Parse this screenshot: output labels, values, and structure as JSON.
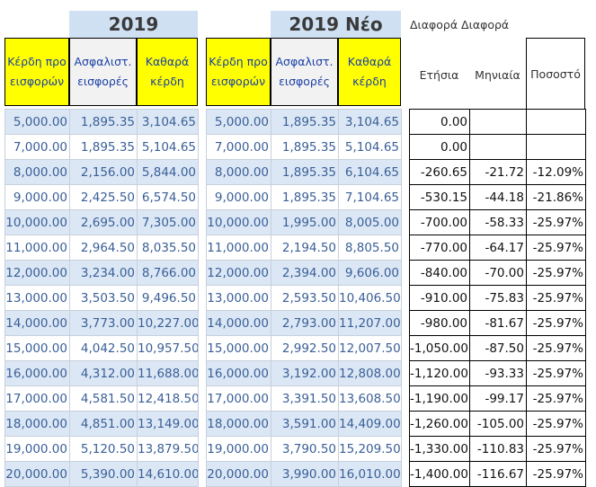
{
  "left": {
    "title": "2019",
    "headers": [
      "Κέρδη προ εισφορών",
      "Ασφαλιστ. εισφορές",
      "Καθαρά κέρδη"
    ],
    "rows": [
      [
        "5,000.00",
        "1,895.35",
        "3,104.65"
      ],
      [
        "7,000.00",
        "1,895.35",
        "5,104.65"
      ],
      [
        "8,000.00",
        "2,156.00",
        "5,844.00"
      ],
      [
        "9,000.00",
        "2,425.50",
        "6,574.50"
      ],
      [
        "10,000.00",
        "2,695.00",
        "7,305.00"
      ],
      [
        "11,000.00",
        "2,964.50",
        "8,035.50"
      ],
      [
        "12,000.00",
        "3,234.00",
        "8,766.00"
      ],
      [
        "13,000.00",
        "3,503.50",
        "9,496.50"
      ],
      [
        "14,000.00",
        "3,773.00",
        "10,227.00"
      ],
      [
        "15,000.00",
        "4,042.50",
        "10,957.50"
      ],
      [
        "16,000.00",
        "4,312.00",
        "11,688.00"
      ],
      [
        "17,000.00",
        "4,581.50",
        "12,418.50"
      ],
      [
        "18,000.00",
        "4,851.00",
        "13,149.00"
      ],
      [
        "19,000.00",
        "5,120.50",
        "13,879.50"
      ],
      [
        "20,000.00",
        "5,390.00",
        "14,610.00"
      ]
    ]
  },
  "right": {
    "title": "2019 Νέο",
    "headers": [
      "Κέρδη προ εισφορών",
      "Ασφαλιστ. εισφορές",
      "Καθαρά κέρδη"
    ],
    "rows": [
      [
        "5,000.00",
        "1,895.35",
        "3,104.65"
      ],
      [
        "7,000.00",
        "1,895.35",
        "5,104.65"
      ],
      [
        "8,000.00",
        "1,895.35",
        "6,104.65"
      ],
      [
        "9,000.00",
        "1,895.35",
        "7,104.65"
      ],
      [
        "10,000.00",
        "1,995.00",
        "8,005.00"
      ],
      [
        "11,000.00",
        "2,194.50",
        "8,805.50"
      ],
      [
        "12,000.00",
        "2,394.00",
        "9,606.00"
      ],
      [
        "13,000.00",
        "2,593.50",
        "10,406.50"
      ],
      [
        "14,000.00",
        "2,793.00",
        "11,207.00"
      ],
      [
        "15,000.00",
        "2,992.50",
        "12,007.50"
      ],
      [
        "16,000.00",
        "3,192.00",
        "12,808.00"
      ],
      [
        "17,000.00",
        "3,391.50",
        "13,608.50"
      ],
      [
        "18,000.00",
        "3,591.00",
        "14,409.00"
      ],
      [
        "19,000.00",
        "3,790.50",
        "15,209.50"
      ],
      [
        "20,000.00",
        "3,990.00",
        "16,010.00"
      ]
    ]
  },
  "diff": {
    "label": "Διαφορά Διαφορά",
    "headers": [
      "Ετήσια",
      "Μηνιαία",
      "Ποσοστό"
    ],
    "rows": [
      [
        "0.00",
        "",
        ""
      ],
      [
        "0.00",
        "",
        ""
      ],
      [
        "-260.65",
        "-21.72",
        "-12.09%"
      ],
      [
        "-530.15",
        "-44.18",
        "-21.86%"
      ],
      [
        "-700.00",
        "-58.33",
        "-25.97%"
      ],
      [
        "-770.00",
        "-64.17",
        "-25.97%"
      ],
      [
        "-840.00",
        "-70.00",
        "-25.97%"
      ],
      [
        "-910.00",
        "-75.83",
        "-25.97%"
      ],
      [
        "-980.00",
        "-81.67",
        "-25.97%"
      ],
      [
        "-1,050.00",
        "-87.50",
        "-25.97%"
      ],
      [
        "-1,120.00",
        "-93.33",
        "-25.97%"
      ],
      [
        "-1,190.00",
        "-99.17",
        "-25.97%"
      ],
      [
        "-1,260.00",
        "-105.00",
        "-25.97%"
      ],
      [
        "-1,330.00",
        "-110.83",
        "-25.97%"
      ],
      [
        "-1,400.00",
        "-116.67",
        "-25.97%"
      ]
    ]
  }
}
